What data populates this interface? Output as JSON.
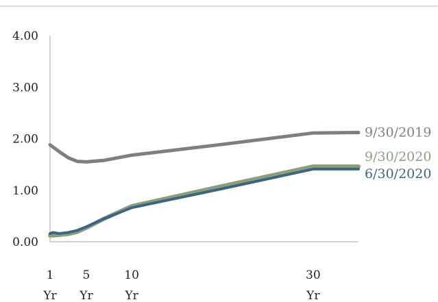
{
  "chart_data": {
    "type": "line",
    "title": "",
    "xlabel": "",
    "ylabel": "",
    "ylim": [
      0,
      4
    ],
    "xlim": [
      1,
      35
    ],
    "grid": false,
    "legend": "none",
    "y_ticks": [
      {
        "value": 0,
        "label": "0.00"
      },
      {
        "value": 1,
        "label": "1.00"
      },
      {
        "value": 2,
        "label": "2.00"
      },
      {
        "value": 3,
        "label": "3.00"
      },
      {
        "value": 4,
        "label": "4.00"
      }
    ],
    "x_ticks": [
      {
        "value": 1,
        "line1": "1",
        "line2": "Yr"
      },
      {
        "value": 5,
        "line1": "5",
        "line2": "Yr"
      },
      {
        "value": 10,
        "line1": "10",
        "line2": "Yr"
      },
      {
        "value": 30,
        "line1": "30",
        "line2": "Yr"
      }
    ],
    "series": [
      {
        "name": "9/30/2019",
        "color": "#7f7f7f",
        "x": [
          1,
          2,
          3,
          4,
          5,
          7,
          10,
          20,
          30,
          35
        ],
        "y": [
          1.88,
          1.75,
          1.63,
          1.56,
          1.55,
          1.58,
          1.68,
          1.89,
          2.11,
          2.12
        ]
      },
      {
        "name": "9/30/2020",
        "color": "#8c9f7a",
        "x": [
          1,
          2,
          3,
          4,
          5,
          7,
          10,
          20,
          30,
          35
        ],
        "y": [
          0.12,
          0.13,
          0.15,
          0.19,
          0.27,
          0.45,
          0.69,
          1.08,
          1.46,
          1.46
        ]
      },
      {
        "name": "6/30/2020",
        "color": "#3c6485",
        "x": [
          1,
          1.3,
          2,
          3,
          4,
          5,
          7,
          10,
          20,
          30,
          35
        ],
        "y": [
          0.16,
          0.18,
          0.16,
          0.18,
          0.22,
          0.29,
          0.45,
          0.66,
          1.03,
          1.41,
          1.41
        ]
      }
    ]
  }
}
